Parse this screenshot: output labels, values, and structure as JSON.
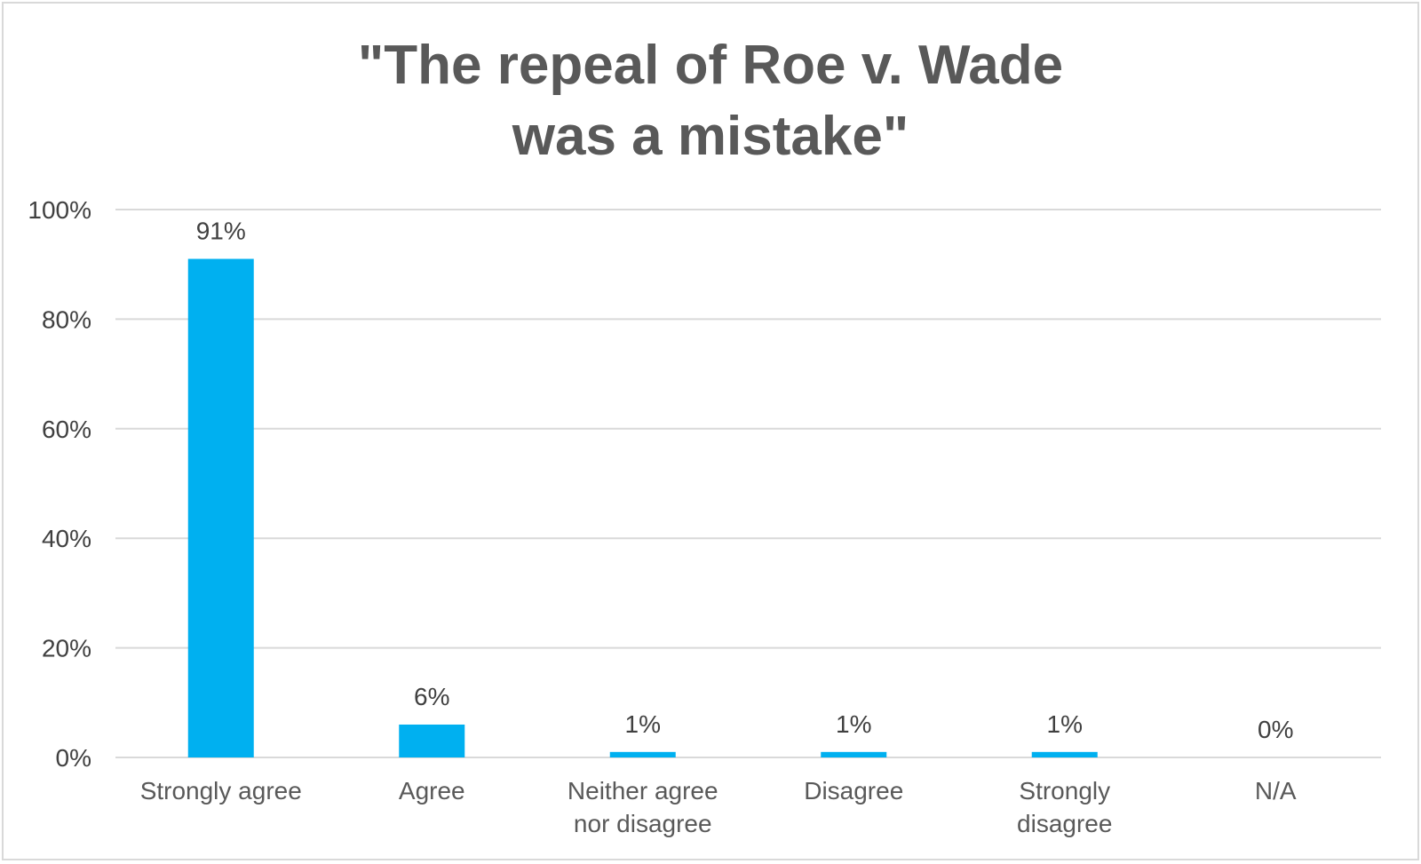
{
  "chart_data": {
    "type": "bar",
    "title_lines": [
      "\"The repeal of Roe v. Wade",
      "was a mistake\""
    ],
    "categories": [
      [
        "Strongly agree"
      ],
      [
        "Agree"
      ],
      [
        "Neither agree",
        "nor disagree"
      ],
      [
        "Disagree"
      ],
      [
        "Strongly",
        "disagree"
      ],
      [
        "N/A"
      ]
    ],
    "values": [
      91,
      6,
      1,
      1,
      1,
      0
    ],
    "data_labels": [
      "91%",
      "6%",
      "1%",
      "1%",
      "1%",
      "0%"
    ],
    "yticks": [
      0,
      20,
      40,
      60,
      80,
      100
    ],
    "ytick_labels": [
      "0%",
      "20%",
      "40%",
      "60%",
      "80%",
      "100%"
    ],
    "ylim": [
      0,
      100
    ],
    "grid": true,
    "legend": "none",
    "bar_color": "#00b0f0",
    "grid_color": "#d9d9d9"
  }
}
